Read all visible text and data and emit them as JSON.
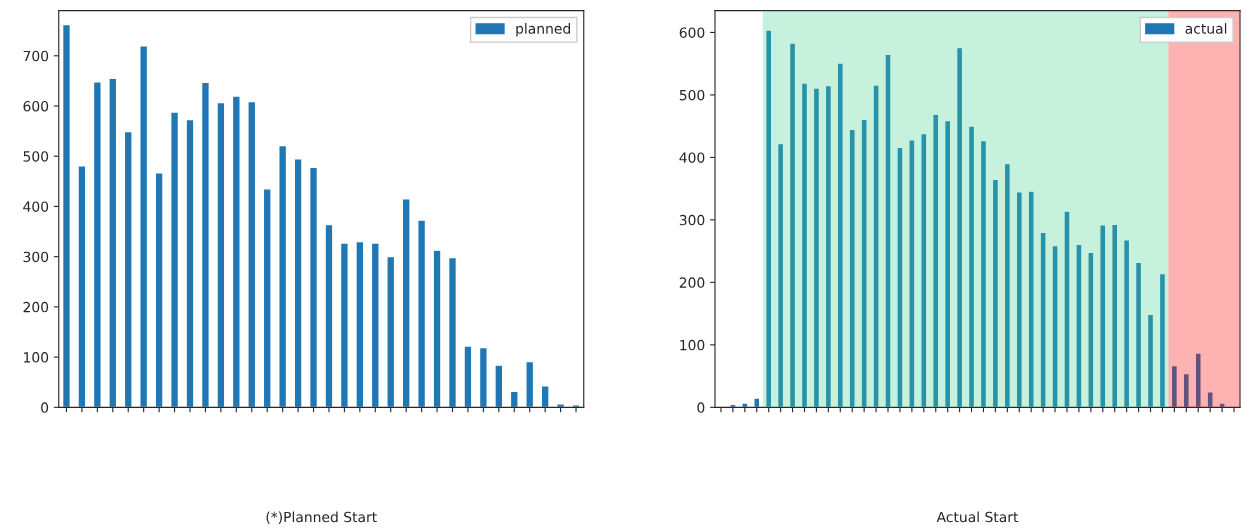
{
  "chart_data": [
    {
      "type": "bar",
      "xlabel": "(*)Planned Start",
      "categories": [
        null,
        null,
        null,
        null,
        null,
        null,
        null,
        null,
        null,
        null,
        null,
        null,
        null,
        null,
        null,
        null,
        null,
        null,
        null,
        null,
        null,
        null,
        null,
        null,
        null,
        null,
        null,
        null,
        null,
        null,
        null,
        null,
        null,
        null
      ],
      "series": [
        {
          "name": "planned",
          "color": "#1f77b4",
          "values": [
            762,
            481,
            648,
            655,
            549,
            720,
            467,
            588,
            573,
            647,
            607,
            620,
            609,
            435,
            521,
            495,
            478,
            364,
            327,
            330,
            327,
            300,
            415,
            373,
            313,
            298,
            122,
            119,
            84,
            32,
            91,
            43,
            7,
            5
          ]
        }
      ],
      "ylim": [
        0,
        790
      ],
      "yticks": [
        0,
        100,
        200,
        300,
        400,
        500,
        600,
        700
      ],
      "legend": "top right"
    },
    {
      "type": "bar",
      "xlabel": "Actual Start",
      "categories": [
        null,
        null,
        null,
        null,
        null,
        null,
        null,
        null,
        null,
        null,
        null,
        null,
        null,
        null,
        null,
        null,
        null,
        null,
        null,
        null,
        null,
        null,
        null,
        null,
        null,
        null,
        null,
        null,
        null,
        null,
        null,
        null,
        null,
        null,
        null,
        null,
        null,
        null,
        null,
        null,
        null,
        null,
        null,
        null
      ],
      "series": [
        {
          "name": "actual",
          "color": "#1f77b4",
          "values": [
            1,
            5,
            7,
            15,
            604,
            422,
            583,
            519,
            511,
            515,
            551,
            445,
            461,
            516,
            565,
            416,
            428,
            438,
            469,
            459,
            576,
            450,
            427,
            365,
            390,
            345,
            346,
            280,
            259,
            314,
            261,
            248,
            292,
            293,
            268,
            232,
            149,
            214,
            67,
            54,
            87,
            25,
            7,
            null
          ]
        }
      ],
      "ylim": [
        0,
        635
      ],
      "yticks": [
        0,
        100,
        200,
        300,
        400,
        500,
        600
      ],
      "legend": "top right"
    }
  ]
}
